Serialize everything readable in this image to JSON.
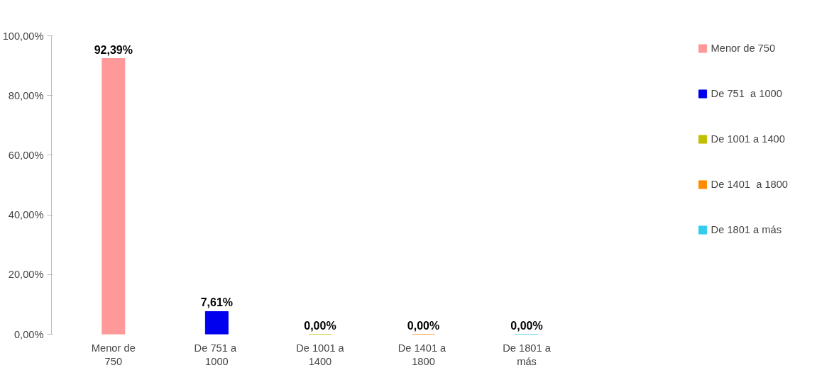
{
  "chart_data": {
    "type": "bar",
    "categories": [
      "Menor de 750",
      "De 751  a 1000",
      "De 1001 a 1400",
      "De 1401  a 1800",
      "De 1801 a más"
    ],
    "series": [
      {
        "name": "Menor de 750",
        "color": "#ff9999",
        "values": [
          92.39,
          null,
          null,
          null,
          null
        ],
        "value_labels": [
          "92,39%",
          null,
          null,
          null,
          null
        ]
      },
      {
        "name": "De 751  a 1000",
        "color": "#0000ee",
        "values": [
          null,
          7.61,
          null,
          null,
          null
        ],
        "value_labels": [
          null,
          "7,61%",
          null,
          null,
          null
        ]
      },
      {
        "name": "De 1001 a 1400",
        "color": "#c0c000",
        "values": [
          null,
          null,
          0,
          null,
          null
        ],
        "value_labels": [
          null,
          null,
          "0,00%",
          null,
          null
        ]
      },
      {
        "name": "De 1401  a 1800",
        "color": "#ff8c00",
        "values": [
          null,
          null,
          null,
          0,
          null
        ],
        "value_labels": [
          null,
          null,
          null,
          "0,00%",
          null
        ]
      },
      {
        "name": "De 1801 a más",
        "color": "#33ccee",
        "values": [
          null,
          null,
          null,
          null,
          0
        ],
        "value_labels": [
          null,
          null,
          null,
          null,
          "0,00%"
        ]
      }
    ],
    "ylim": [
      0,
      100
    ],
    "yticks": [
      {
        "value": 0,
        "label": "0,00%"
      },
      {
        "value": 20,
        "label": "20,00%"
      },
      {
        "value": 40,
        "label": "40,00%"
      },
      {
        "value": 60,
        "label": "60,00%"
      },
      {
        "value": 80,
        "label": "80,00%"
      },
      {
        "value": 100,
        "label": "100,00%"
      }
    ],
    "legend": "right",
    "grid": false
  }
}
